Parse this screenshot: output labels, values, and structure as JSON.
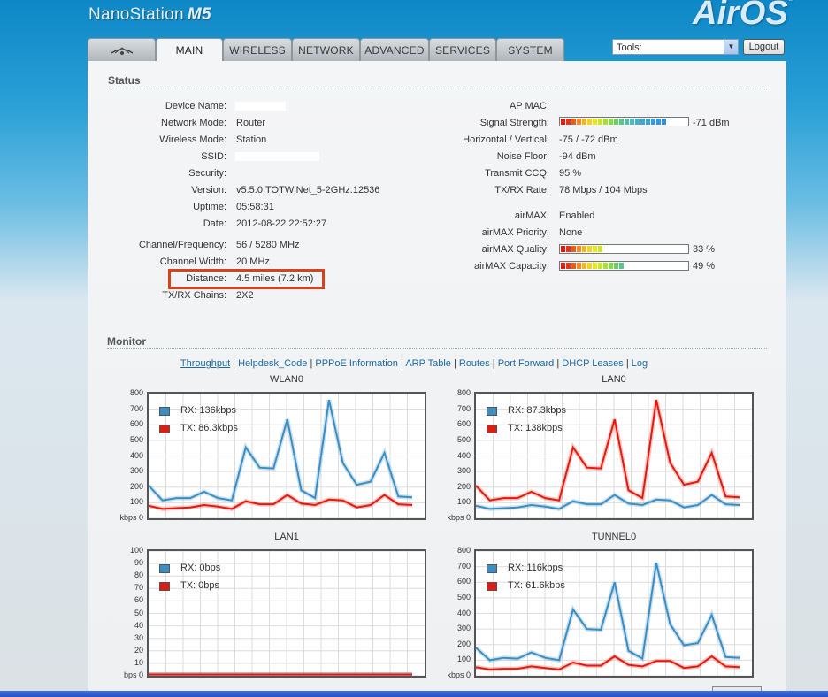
{
  "header": {
    "product": "NanoStation",
    "model": "M5",
    "brand": "AirOS"
  },
  "tabs": [
    {
      "label": "MAIN",
      "active": true
    },
    {
      "label": "WIRELESS"
    },
    {
      "label": "NETWORK"
    },
    {
      "label": "ADVANCED"
    },
    {
      "label": "SERVICES"
    },
    {
      "label": "SYSTEM"
    }
  ],
  "tools": {
    "label": "Tools:",
    "icon": "chevron-down-icon"
  },
  "logout": "Logout",
  "status": {
    "title": "Status",
    "left": [
      {
        "label": "Device Name:",
        "value": ""
      },
      {
        "label": "Network Mode:",
        "value": "Router"
      },
      {
        "label": "Wireless Mode:",
        "value": "Station"
      },
      {
        "label": "SSID:",
        "value": ""
      },
      {
        "label": "Security:",
        "value": ""
      },
      {
        "label": "Version:",
        "value": "v5.5.0.TOTWiNet_5-2GHz.12536"
      },
      {
        "label": "Uptime:",
        "value": "05:58:31"
      },
      {
        "label": "Date:",
        "value": "2012-08-22 22:52:27"
      },
      {
        "label": "Channel/Frequency:",
        "value": "56 / 5280 MHz"
      },
      {
        "label": "Channel Width:",
        "value": "20 MHz"
      },
      {
        "label": "Distance:",
        "value": "4.5 miles (7.2 km)"
      },
      {
        "label": "TX/RX Chains:",
        "value": "2X2"
      }
    ],
    "right": [
      {
        "label": "AP MAC:",
        "value": ""
      },
      {
        "label": "Signal Strength:",
        "value": "-71 dBm",
        "bar_fraction": 0.82
      },
      {
        "label": "Horizontal / Vertical:",
        "value": "-75 / -72 dBm"
      },
      {
        "label": "Noise Floor:",
        "value": "-94 dBm"
      },
      {
        "label": "Transmit CCQ:",
        "value": "95 %"
      },
      {
        "label": "TX/RX Rate:",
        "value": "78 Mbps / 104 Mbps"
      },
      {
        "label": "airMAX:",
        "value": "Enabled"
      },
      {
        "label": "airMAX Priority:",
        "value": "None"
      },
      {
        "label": "airMAX Quality:",
        "value": "33 %",
        "bar_fraction": 0.33
      },
      {
        "label": "airMAX Capacity:",
        "value": "49 %",
        "bar_fraction": 0.49
      }
    ]
  },
  "monitor": {
    "title": "Monitor",
    "links": [
      {
        "label": "Throughput",
        "active": true
      },
      {
        "label": "Helpdesk_Code"
      },
      {
        "label": "PPPoE Information"
      },
      {
        "label": "ARP Table"
      },
      {
        "label": "Routes"
      },
      {
        "label": "Port Forward"
      },
      {
        "label": "DHCP Leases"
      },
      {
        "label": "Log"
      }
    ]
  },
  "colors": {
    "rx": "#3a8ec4",
    "tx": "#e01b10",
    "highlight": "#d8421a",
    "link": "#1b6aa5"
  },
  "chart_data": [
    {
      "type": "line",
      "title": "WLAN0",
      "unit_label": "kbps",
      "ylim": [
        0,
        800
      ],
      "yticks": [
        0,
        100,
        200,
        300,
        400,
        500,
        600,
        700,
        800
      ],
      "series": [
        {
          "name": "RX: 136kbps",
          "color": "#3a8ec4",
          "values": [
            210,
            115,
            130,
            130,
            170,
            130,
            115,
            455,
            325,
            320,
            635,
            180,
            130,
            760,
            355,
            215,
            235,
            420,
            140,
            135
          ]
        },
        {
          "name": "TX: 86.3kbps",
          "color": "#e01b10",
          "values": [
            80,
            60,
            65,
            70,
            85,
            75,
            60,
            110,
            90,
            90,
            150,
            95,
            85,
            120,
            115,
            70,
            85,
            150,
            90,
            85
          ]
        }
      ]
    },
    {
      "type": "line",
      "title": "LAN0",
      "unit_label": "kbps",
      "ylim": [
        0,
        800
      ],
      "yticks": [
        0,
        100,
        200,
        300,
        400,
        500,
        600,
        700,
        800
      ],
      "series": [
        {
          "name": "RX: 87.3kbps",
          "color": "#3a8ec4",
          "values": [
            80,
            60,
            65,
            70,
            85,
            75,
            60,
            110,
            90,
            90,
            150,
            95,
            85,
            120,
            115,
            70,
            85,
            150,
            90,
            85
          ]
        },
        {
          "name": "TX: 138kbps",
          "color": "#e01b10",
          "values": [
            210,
            115,
            130,
            130,
            170,
            130,
            115,
            455,
            325,
            320,
            635,
            180,
            130,
            760,
            355,
            215,
            235,
            420,
            140,
            135
          ]
        }
      ]
    },
    {
      "type": "line",
      "title": "LAN1",
      "unit_label": "bps",
      "ylim": [
        0,
        100
      ],
      "yticks": [
        0,
        10,
        20,
        30,
        40,
        50,
        60,
        70,
        80,
        90,
        100
      ],
      "series": [
        {
          "name": "RX: 0bps",
          "color": "#3a8ec4",
          "values": [
            0,
            0,
            0,
            0,
            0,
            0,
            0,
            0,
            0,
            0,
            0,
            0,
            0,
            0,
            0,
            0,
            0,
            0,
            0,
            0
          ]
        },
        {
          "name": "TX: 0bps",
          "color": "#e01b10",
          "values": [
            0,
            0,
            0,
            0,
            0,
            0,
            0,
            0,
            0,
            0,
            0,
            0,
            0,
            0,
            0,
            0,
            0,
            0,
            0,
            0
          ]
        }
      ]
    },
    {
      "type": "line",
      "title": "TUNNEL0",
      "unit_label": "kbps",
      "ylim": [
        0,
        800
      ],
      "yticks": [
        0,
        100,
        200,
        300,
        400,
        500,
        600,
        700,
        800
      ],
      "series": [
        {
          "name": "RX: 116kbps",
          "color": "#3a8ec4",
          "values": [
            180,
            100,
            115,
            110,
            150,
            115,
            100,
            425,
            300,
            295,
            600,
            160,
            110,
            725,
            330,
            195,
            210,
            390,
            120,
            115
          ]
        },
        {
          "name": "TX: 61.6kbps",
          "color": "#e01b10",
          "values": [
            55,
            40,
            45,
            45,
            60,
            50,
            40,
            85,
            65,
            65,
            125,
            70,
            60,
            95,
            95,
            50,
            60,
            125,
            60,
            55
          ]
        }
      ]
    }
  ]
}
